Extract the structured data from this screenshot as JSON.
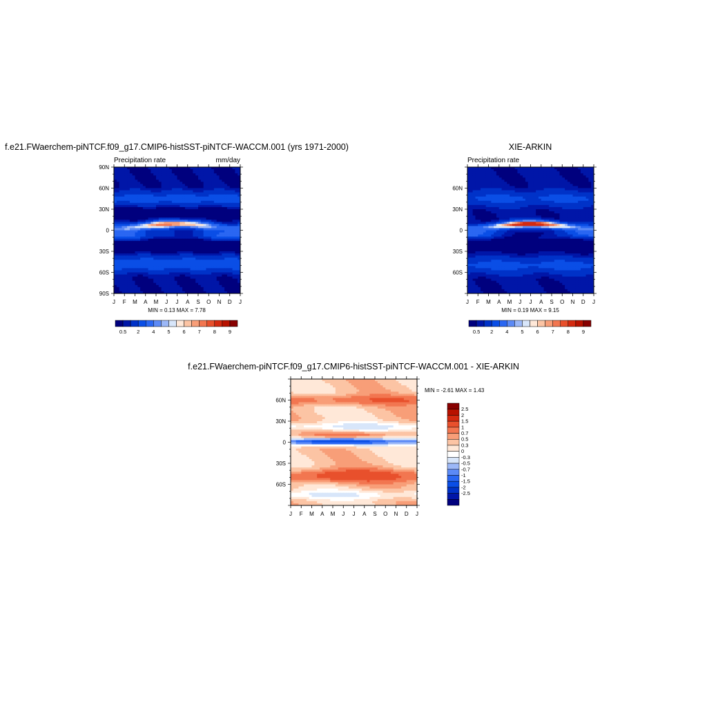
{
  "months": [
    "J",
    "F",
    "M",
    "A",
    "M",
    "J",
    "J",
    "A",
    "S",
    "O",
    "N",
    "D",
    "J"
  ],
  "colors": {
    "abs": [
      "#00007e",
      "#0016a8",
      "#0032c8",
      "#0a4ee6",
      "#2a67f2",
      "#5c8af6",
      "#9cb8f8",
      "#d8e6fa",
      "#ffe8d8",
      "#fcc4a4",
      "#f89e78",
      "#f27650",
      "#e8502c",
      "#d42a10",
      "#b81200",
      "#880000"
    ],
    "diff": [
      "#00007e",
      "#0016a8",
      "#0032c8",
      "#0a4ee6",
      "#2a67f2",
      "#5c8af6",
      "#9cb8f8",
      "#d8e6fa",
      "#ffffff",
      "#ffe8d8",
      "#fcc4a4",
      "#f89e78",
      "#f27650",
      "#e8502c",
      "#d42a10",
      "#b81200",
      "#880000"
    ]
  },
  "chart_data": [
    {
      "id": "model",
      "type": "heatmap",
      "title": "f.e21.FWaerchem-piNTCF.f09_g17.CMIP6-histSST-piNTCF-WACCM.001 (yrs 1971-2000)",
      "left_label": "Precipitation rate",
      "right_label": "mm/day",
      "x": [
        "J",
        "F",
        "M",
        "A",
        "M",
        "J",
        "J",
        "A",
        "S",
        "O",
        "N",
        "D",
        "J"
      ],
      "y_ticks": [
        "90N",
        "60N",
        "30N",
        "0",
        "30S",
        "60S",
        "90S"
      ],
      "y_range": [
        -90,
        90
      ],
      "min_max_text": "MIN =   0.13 MAX =   7.78",
      "min": 0.13,
      "max": 7.78,
      "colorbar_labels": [
        "0.5",
        "2",
        "4",
        "5",
        "6",
        "7",
        "8",
        "9"
      ],
      "itcz_peak": 7.78
    },
    {
      "id": "obs",
      "type": "heatmap",
      "title": "XIE-ARKIN",
      "left_label": "Precipitation rate",
      "right_label": "",
      "x": [
        "J",
        "F",
        "M",
        "A",
        "M",
        "J",
        "J",
        "A",
        "S",
        "O",
        "N",
        "D",
        "J"
      ],
      "y_ticks": [
        "60N",
        "30N",
        "0",
        "30S",
        "60S"
      ],
      "y_range": [
        -90,
        90
      ],
      "min_max_text": "MIN =   0.19 MAX =   9.15",
      "min": 0.19,
      "max": 9.15,
      "colorbar_labels": [
        "0.5",
        "2",
        "4",
        "5",
        "6",
        "7",
        "8",
        "9"
      ],
      "itcz_peak": 9.15
    },
    {
      "id": "diff",
      "type": "heatmap",
      "title": "f.e21.FWaerchem-piNTCF.f09_g17.CMIP6-histSST-piNTCF-WACCM.001 - XIE-ARKIN",
      "x": [
        "J",
        "F",
        "M",
        "A",
        "M",
        "J",
        "J",
        "A",
        "S",
        "O",
        "N",
        "D",
        "J"
      ],
      "y_ticks": [
        "60N",
        "30N",
        "0",
        "30S",
        "60S"
      ],
      "y_range": [
        -90,
        90
      ],
      "min_max_text": "MIN =  -2.61 MAX =   1.43",
      "min": -2.61,
      "max": 1.43,
      "colorbar_labels": [
        "2.5",
        "2",
        "1.5",
        "1",
        "0.7",
        "0.5",
        "0.3",
        "0",
        "-0.3",
        "-0.5",
        "-0.7",
        "-1",
        "-1.5",
        "-2",
        "-2.5"
      ]
    }
  ]
}
